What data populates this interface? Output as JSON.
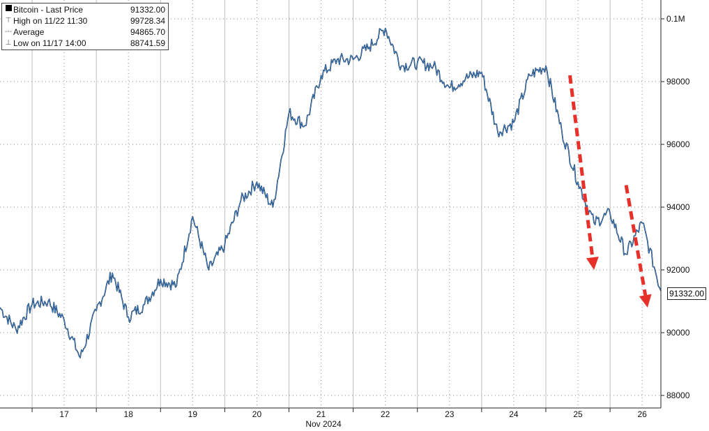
{
  "legend": {
    "title": "Bitcoin - Last Price",
    "last_value": "91332.00",
    "high_label": "High on 11/22 11:30",
    "high_value": "99728.34",
    "avg_label": "Average",
    "avg_value": "94865.70",
    "low_label": "Low on 11/17 14:00",
    "low_value": "88741.59"
  },
  "price_badge": "91332.00",
  "colors": {
    "price_line": "#000000",
    "blue_overlay": "#3b7dc4",
    "arrow": "#e8302a",
    "grid": "#8a8a8a"
  },
  "chart_data": {
    "type": "line",
    "xlabel": "Nov 2024",
    "ylabel": "",
    "x_ticks": [
      "17",
      "18",
      "19",
      "20",
      "21",
      "22",
      "23",
      "24",
      "25",
      "26"
    ],
    "xlim": [
      "2024-11-16 12:00",
      "2024-11-26 19:00"
    ],
    "y_ticks": [
      "88000",
      "90000",
      "92000",
      "94000",
      "96000",
      "98000",
      "0.1M"
    ],
    "y_tick_values": [
      88000,
      90000,
      92000,
      94000,
      96000,
      98000,
      100000
    ],
    "ylim": [
      87600,
      100600
    ],
    "grid": true,
    "series": [
      {
        "name": "Bitcoin - Last Price",
        "x": [
          "2024-11-16 12:00",
          "2024-11-16 18:00",
          "2024-11-17 00:00",
          "2024-11-17 06:00",
          "2024-11-17 12:00",
          "2024-11-17 18:00",
          "2024-11-18 00:00",
          "2024-11-18 06:00",
          "2024-11-18 12:00",
          "2024-11-18 18:00",
          "2024-11-19 00:00",
          "2024-11-19 06:00",
          "2024-11-19 12:00",
          "2024-11-19 18:00",
          "2024-11-20 00:00",
          "2024-11-20 06:00",
          "2024-11-20 12:00",
          "2024-11-20 18:00",
          "2024-11-21 00:00",
          "2024-11-21 06:00",
          "2024-11-21 12:00",
          "2024-11-21 18:00",
          "2024-11-22 00:00",
          "2024-11-22 06:00",
          "2024-11-22 12:00",
          "2024-11-22 18:00",
          "2024-11-23 00:00",
          "2024-11-23 06:00",
          "2024-11-23 12:00",
          "2024-11-23 18:00",
          "2024-11-24 00:00",
          "2024-11-24 06:00",
          "2024-11-24 12:00",
          "2024-11-24 18:00",
          "2024-11-25 00:00",
          "2024-11-25 06:00",
          "2024-11-25 12:00",
          "2024-11-25 18:00",
          "2024-11-26 00:00",
          "2024-11-26 06:00",
          "2024-11-26 12:00",
          "2024-11-26 19:00"
        ],
        "values": [
          90800,
          90100,
          90900,
          91000,
          90400,
          89200,
          90700,
          91900,
          90500,
          90900,
          91700,
          91500,
          93700,
          92000,
          92800,
          94200,
          94800,
          94000,
          97000,
          96600,
          98200,
          98700,
          98700,
          99100,
          99700,
          98500,
          98600,
          98500,
          97800,
          98100,
          98300,
          96400,
          96700,
          98200,
          98500,
          96400,
          94800,
          93500,
          93800,
          92500,
          93500,
          91332
        ]
      }
    ],
    "annotations": [
      {
        "type": "arrow",
        "color": "red",
        "style": "dashed",
        "from_x": "2024-11-25 09:00",
        "from_y": 98200,
        "to_x": "2024-11-25 18:00",
        "to_y": 92000
      },
      {
        "type": "arrow",
        "color": "red",
        "style": "dashed",
        "from_x": "2024-11-26 06:00",
        "from_y": 94700,
        "to_x": "2024-11-26 14:00",
        "to_y": 90800
      }
    ]
  }
}
